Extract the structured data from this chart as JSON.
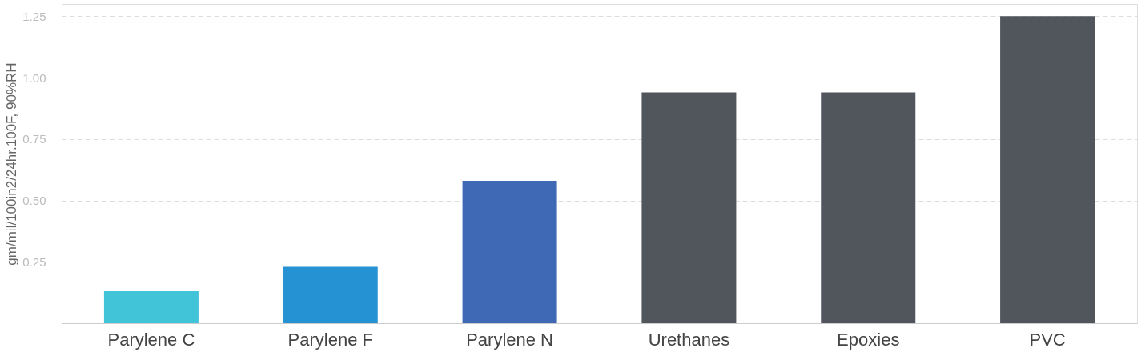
{
  "chart_data": {
    "type": "bar",
    "ylabel": "gm/mil/100in2/24hr.100F, 90%RH",
    "categories": [
      "Parylene C",
      "Parylene F",
      "Parylene N",
      "Urethanes",
      "Epoxies",
      "PVC"
    ],
    "values": [
      0.13,
      0.23,
      0.58,
      0.94,
      0.94,
      1.25
    ],
    "colors": [
      "#42c4d8",
      "#2592d3",
      "#3f69b4",
      "#51555c",
      "#51555c",
      "#51555c"
    ],
    "ylim": [
      0,
      1.3
    ],
    "yticks": [
      0.25,
      {
        "value": 0.5,
        "label": "0.50"
      },
      0.75,
      {
        "value": 1.0,
        "label": "1.00"
      },
      1.25
    ],
    "grid": "y"
  }
}
